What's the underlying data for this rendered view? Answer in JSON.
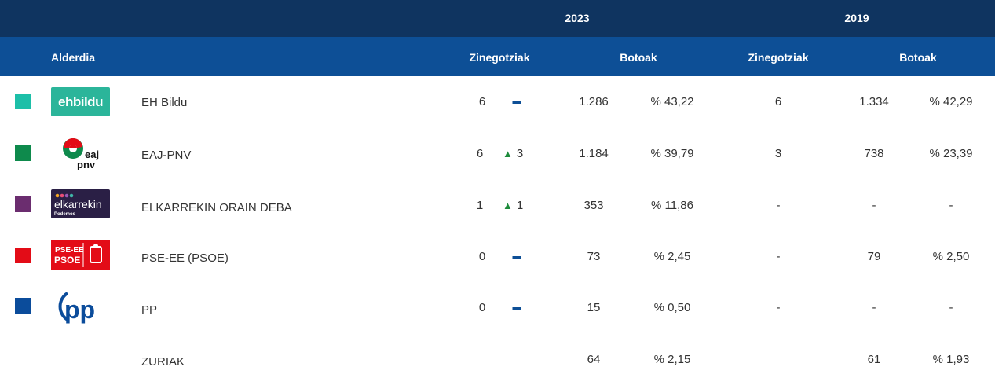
{
  "header": {
    "year_current": "2023",
    "year_previous": "2019",
    "col_party": "Alderdia",
    "col_seats_current": "Zinegotziak",
    "col_votes_current": "Botoak",
    "col_seats_previous": "Zinegotziak",
    "col_votes_previous": "Botoak"
  },
  "rows": [
    {
      "name": "EH Bildu",
      "color": "#1dbfa8",
      "logo_icon": "ehbildu-logo",
      "seats_2023": "6",
      "change": "",
      "votes_2023": "1.286",
      "pct_2023": "% 43,22",
      "seats_2019": "6",
      "votes_2019": "1.334",
      "pct_2019": "% 42,29"
    },
    {
      "name": "EAJ-PNV",
      "color": "#0e8a4c",
      "logo_icon": "eaj-pnv-logo",
      "seats_2023": "6",
      "change": "3",
      "votes_2023": "1.184",
      "pct_2023": "% 39,79",
      "seats_2019": "3",
      "votes_2019": "738",
      "pct_2019": "% 23,39"
    },
    {
      "name": "ELKARREKIN ORAIN DEBA",
      "color": "#6b2d6f",
      "logo_icon": "elkarrekin-logo",
      "seats_2023": "1",
      "change": "1",
      "votes_2023": "353",
      "pct_2023": "% 11,86",
      "seats_2019": "-",
      "votes_2019": "-",
      "pct_2019": "-"
    },
    {
      "name": "PSE-EE (PSOE)",
      "color": "#e30c17",
      "logo_icon": "pse-ee-psoe-logo",
      "seats_2023": "0",
      "change": "",
      "votes_2023": "73",
      "pct_2023": "% 2,45",
      "seats_2019": "-",
      "votes_2019": "79",
      "pct_2019": "% 2,50"
    },
    {
      "name": "PP",
      "color": "#0b4c9b",
      "logo_icon": "pp-logo",
      "seats_2023": "0",
      "change": "",
      "votes_2023": "15",
      "pct_2023": "% 0,50",
      "seats_2019": "-",
      "votes_2019": "-",
      "pct_2019": "-"
    },
    {
      "name": "ZURIAK",
      "color": "",
      "logo_icon": "",
      "seats_2023": "",
      "change": "",
      "votes_2023": "64",
      "pct_2023": "% 2,15",
      "seats_2019": "",
      "votes_2019": "61",
      "pct_2019": "% 1,93"
    }
  ],
  "logo_text": {
    "ehbildu": "ehbildu",
    "eaj_a": "eaj",
    "eaj_b": "pnv",
    "elkarrekin_a": "elkarrekin",
    "elkarrekin_b": "Podemos",
    "pse_a": "PSE-EE",
    "pse_b": "PSOE",
    "pp": "pp"
  }
}
